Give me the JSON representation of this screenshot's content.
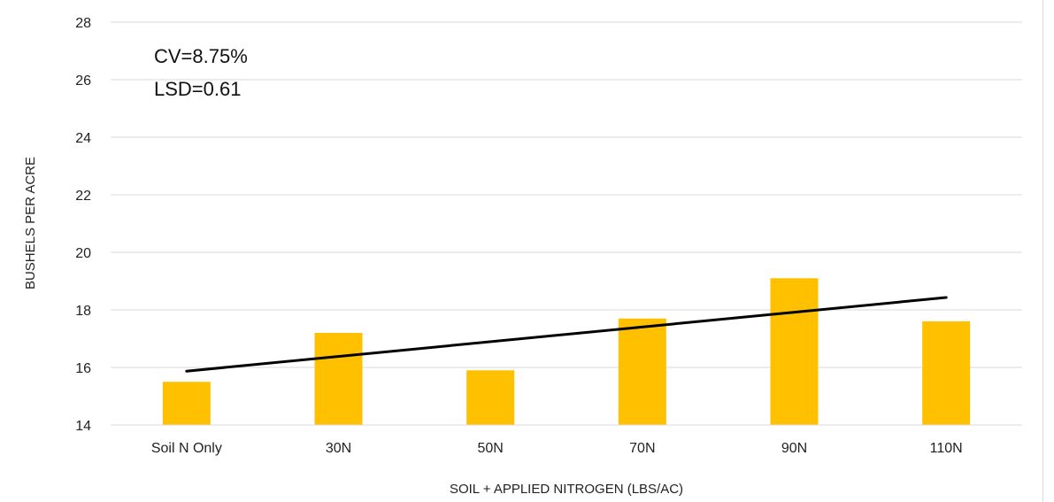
{
  "chart_data": {
    "type": "bar",
    "categories": [
      "Soil N Only",
      "30N",
      "50N",
      "70N",
      "90N",
      "110N"
    ],
    "series": [
      {
        "values": [
          15.5,
          17.2,
          15.9,
          17.7,
          19.1,
          17.6
        ]
      }
    ],
    "trendline": {
      "type": "linear",
      "start": 15.87,
      "end": 18.43
    },
    "xlabel": "SOIL + APPLIED NITROGEN (LBS/AC)",
    "ylabel": "BUSHELS PER ACRE",
    "ylim": [
      14,
      28
    ],
    "yticks": [
      14,
      16,
      18,
      20,
      22,
      24,
      26,
      28
    ],
    "grid": true,
    "annotations": [
      "CV=8.75%",
      "LSD=0.61"
    ],
    "colors": {
      "bar": "#FFC000",
      "trendline": "#000000",
      "grid": "#D9D9D9"
    }
  }
}
